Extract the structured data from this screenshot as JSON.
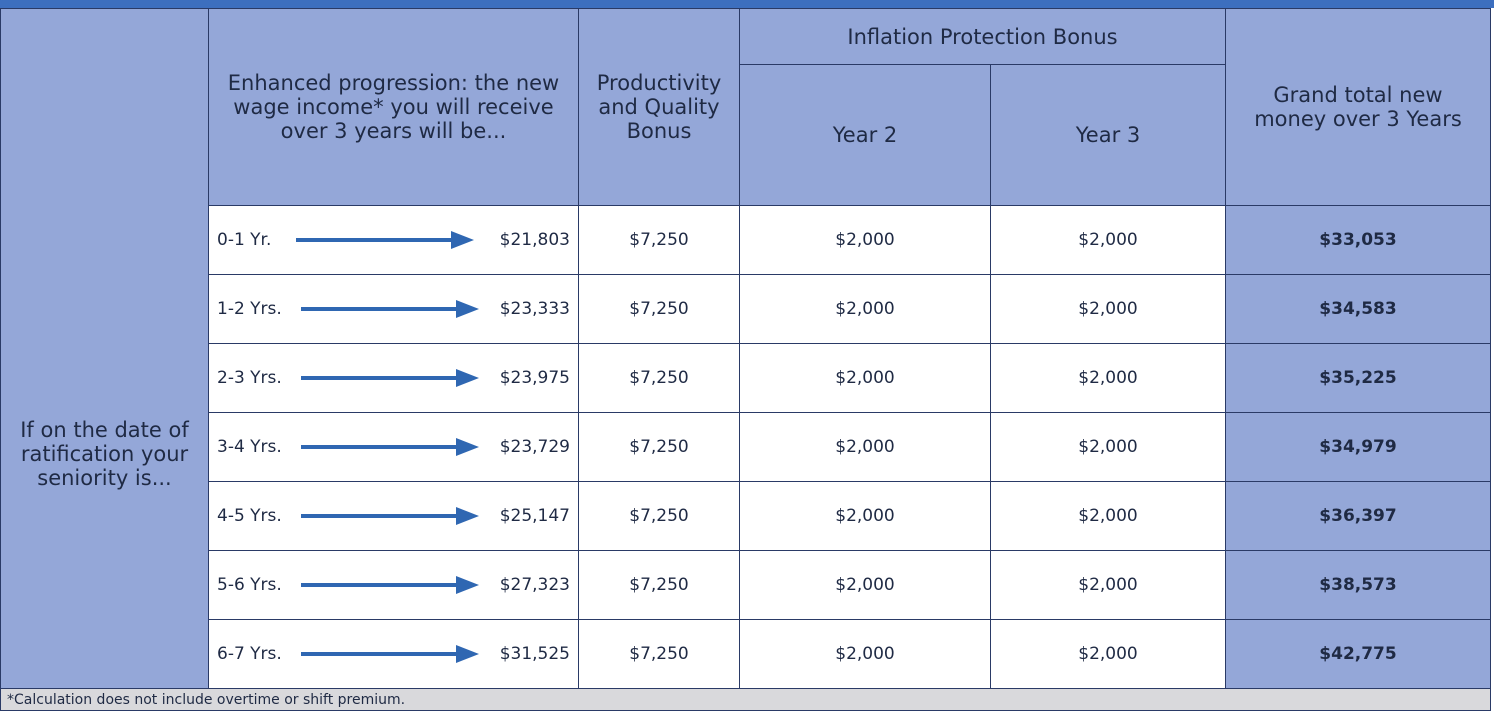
{
  "header": {
    "seniority_question": "If on the date of ratification your seniority is...",
    "wage": "Enhanced progression: the new wage income* you will receive over 3 years will be...",
    "productivity": "Productivity and Quality Bonus",
    "inflation": "Inflation Protection Bonus",
    "year2": "Year 2",
    "year3": "Year 3",
    "grand_total": "Grand total new money over 3 Years"
  },
  "table": {
    "rows": [
      [
        "0-1 Yr.",
        "$21,803",
        "$7,250",
        "$2,000",
        "$2,000",
        "$33,053"
      ],
      [
        "1-2 Yrs.",
        "$23,333",
        "$7,250",
        "$2,000",
        "$2,000",
        "$34,583"
      ],
      [
        "2-3 Yrs.",
        "$23,975",
        "$7,250",
        "$2,000",
        "$2,000",
        "$35,225"
      ],
      [
        "3-4 Yrs.",
        "$23,729",
        "$7,250",
        "$2,000",
        "$2,000",
        "$34,979"
      ],
      [
        "4-5 Yrs.",
        "$25,147",
        "$7,250",
        "$2,000",
        "$2,000",
        "$36,397"
      ],
      [
        "5-6 Yrs.",
        "$27,323",
        "$7,250",
        "$2,000",
        "$2,000",
        "$38,573"
      ],
      [
        "6-7 Yrs.",
        "$31,525",
        "$7,250",
        "$2,000",
        "$2,000",
        "$42,775"
      ]
    ]
  },
  "footnote": "*Calculation does not include overtime or shift premium."
}
